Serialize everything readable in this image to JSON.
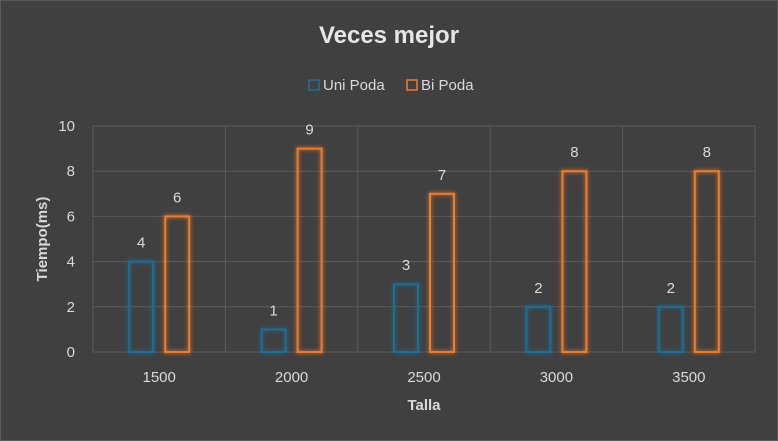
{
  "chart_data": {
    "type": "bar",
    "title": "Veces mejor",
    "xlabel": "Talla",
    "ylabel": "Tiempo(ms)",
    "categories": [
      "1500",
      "2000",
      "2500",
      "3000",
      "3500"
    ],
    "series": [
      {
        "name": "Uni Poda",
        "values": [
          4,
          1,
          3,
          2,
          2
        ],
        "color": "#1f6e96"
      },
      {
        "name": "Bi Poda",
        "values": [
          6,
          9,
          7,
          8,
          8
        ],
        "color": "#f07c2a"
      }
    ],
    "ylim": [
      0,
      10
    ],
    "yticks": [
      0,
      2,
      4,
      6,
      8,
      10
    ],
    "grid": true,
    "legend_position": "top",
    "data_labels": true
  }
}
